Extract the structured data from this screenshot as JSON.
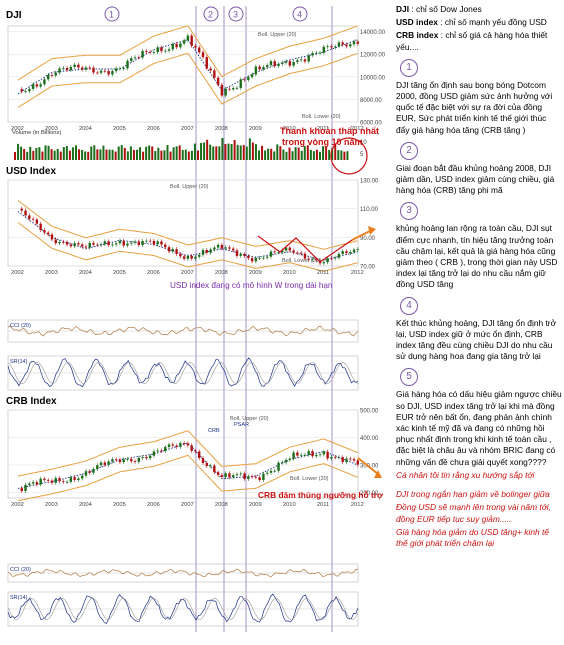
{
  "phase_numbers": [
    "1",
    "2",
    "3",
    "4"
  ],
  "dji_panel": {
    "title": "DJI",
    "upper_label": "Boll. Upper (20)",
    "lower_label": "Boll. Lower (20)",
    "volume_label": "Volume (in Billions)",
    "annotation": [
      "Thanh khoản thấp nhất",
      "trong vòng 10 năm"
    ],
    "y_ticks": [
      "14000.00",
      "12000.00",
      "10000.00",
      "8000.00",
      "6000.00"
    ],
    "vol_ticks": [
      "10",
      "5"
    ]
  },
  "usd_panel": {
    "title": "USD Index",
    "upper_label": "Boll. Upper (20)",
    "lower_label": "Boll. Lower (20)",
    "annotation": "USD index đang có mô hình W trong dài hạn",
    "y_ticks": [
      "130.00",
      "110.00",
      "90.00",
      "70.00"
    ],
    "cci_label": "CCI (20)",
    "stoch_label": "SR(14)"
  },
  "crb_panel": {
    "title": "CRB Index",
    "upper_label": "Boll. Upper (20)",
    "lower_label": "Boll. Lower (20)",
    "series_label": "CRB",
    "psar_label": "PSAR",
    "annotation": "CRB đâm thủng ngưỡng hỗ trợ",
    "y_ticks": [
      "500.00",
      "400.00",
      "300.00",
      "200.00"
    ],
    "cci_label": "CCI (20)",
    "stoch_label": "SR(14)"
  },
  "x_years": [
    "2002",
    "2003",
    "2004",
    "2005",
    "2006",
    "2007",
    "2008",
    "2009",
    "2010",
    "2011",
    "2012"
  ],
  "colors": {
    "phase_line": "#9a84c4",
    "upper": "#e8a040",
    "lower": "#e8a040",
    "ma": "#1a2f8a",
    "price_up": "#1a6e1a",
    "price_down": "#b01010",
    "annotation": "#cc1111",
    "note": "#7a2ca8"
  },
  "chart_data": [
    {
      "type": "line",
      "title": "DJI",
      "x": [
        "2002",
        "2003",
        "2004",
        "2005",
        "2006",
        "2007",
        "2008",
        "2009",
        "2010",
        "2011",
        "2012"
      ],
      "series": [
        {
          "values": [
            8500,
            10400,
            10700,
            10700,
            12400,
            13300,
            8800,
            10400,
            11500,
            12200,
            13300
          ]
        }
      ],
      "ylim": [
        6000,
        14500
      ]
    },
    {
      "type": "line",
      "title": "USD Index",
      "x": [
        "2002",
        "2003",
        "2004",
        "2005",
        "2006",
        "2007",
        "2008",
        "2009",
        "2010",
        "2011",
        "2012"
      ],
      "series": [
        {
          "values": [
            108,
            90,
            82,
            88,
            85,
            77,
            82,
            76,
            80,
            74,
            80
          ]
        }
      ],
      "ylim": [
        70,
        130
      ]
    },
    {
      "type": "line",
      "title": "CRB Index",
      "x": [
        "2002",
        "2003",
        "2004",
        "2005",
        "2006",
        "2007",
        "2008",
        "2009",
        "2010",
        "2011",
        "2012"
      ],
      "series": [
        {
          "values": [
            215,
            240,
            270,
            320,
            340,
            380,
            250,
            260,
            320,
            350,
            300
          ]
        }
      ],
      "ylim": [
        180,
        500
      ]
    }
  ],
  "sidebar": {
    "definitions": [
      {
        "term": "DJI",
        "text": " : chỉ số Dow Jones"
      },
      {
        "term": "USD index",
        "text": " : chỉ số mạnh yếu đồng USD"
      },
      {
        "term": "CRB index",
        "text": " : chỉ số giá cả hàng hóa thiết yếu...."
      }
    ],
    "sections": [
      {
        "num": "1",
        "text": "DJI tăng ổn định sau bong bóng Dotcom 2000, đồng USD giảm sức ảnh hưởng với quốc tế đặc biệt với sự ra đời của đồng EUR, Sức phát triển kinh tế thế giới thúc đẩy giá hàng hóa tăng (CRB tăng )"
      },
      {
        "num": "2",
        "text": "Giai đoạn bắt đầu khủng hoảng 2008, DJI giảm dần, USD index giảm cùng chiều,  giá hàng hóa (CRB) tăng phi mã"
      },
      {
        "num": "3",
        "text": "khủng hoảng lan rộng ra toàn cầu, DJI sụt điểm cực nhanh, tín hiệu tăng trưởng toàn cầu chậm lại, kết quả là giá hàng hóa cũng giảm theo ( CRB ), trong thời gian này USD index lại tăng trở lại do nhu cầu nắm giữ đồng USD tăng"
      },
      {
        "num": "4",
        "text": "Kết thúc khủng hoảng, DJI tăng ổn định trở lại, USD index giữ ở mức ổn định, CRB index tăng đều cùng chiều DJI do nhu cầu sử dụng hàng hoa đang gia tăng trở lại"
      },
      {
        "num": "5",
        "text": "Giá hàng hóa có dấu hiệu giảm ngược chiều so DJI, USD index tăng trở lại khi mà đồng EUR trở nên bất ổn, đang phản ảnh chính xác kinh tế mỹ đã và đang có những hồi phục nhất định trong khi kinh tế toàn cầu , đặc biệt là châu âu và nhóm BRIC đang có những vấn đề chưa giải quyết xong????"
      }
    ],
    "red_notes": [
      "Cá nhân tôi tin rằng xu hướng sắp tới",
      "DJI trong ngắn hạn giảm về bolinger giữa",
      "Đồng USD sẽ mạnh lên trong vài năm tới, đồng EUR tiếp tục suy giảm.....",
      "Giá hàng hóa giảm do USD tăng+ kinh tế thế giới phát triển chậm lại"
    ]
  }
}
